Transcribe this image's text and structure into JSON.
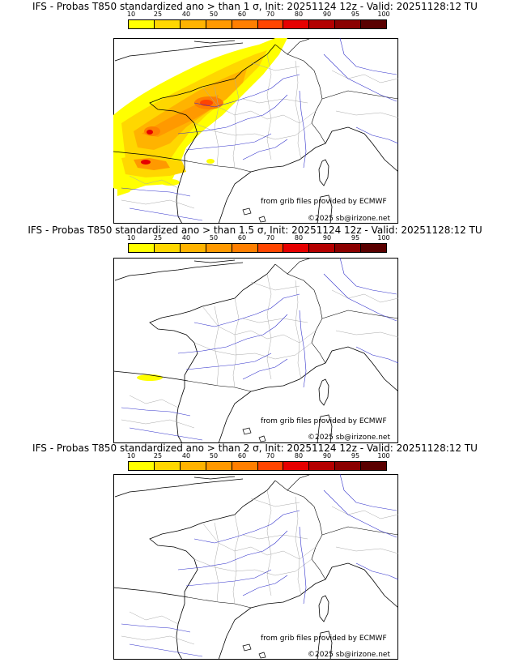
{
  "legend": {
    "ticks": [
      "10",
      "25",
      "40",
      "50",
      "60",
      "70",
      "80",
      "90",
      "95",
      "100"
    ],
    "colors": [
      "#ffff00",
      "#ffd700",
      "#ffb300",
      "#ff9900",
      "#ff7f00",
      "#ff4500",
      "#e60000",
      "#b40000",
      "#8b0000",
      "#5a0000"
    ]
  },
  "panels": [
    {
      "title": "IFS - Probas T850  standardized ano > than 1 σ, Init: 20251124 12z - Valid: 20251128:12 TU",
      "source_text": "from grib files provided by ECMWF",
      "copyright_text": "©2025 sb@irizone.net"
    },
    {
      "title": "IFS - Probas T850  standardized ano > than 1.5 σ, Init: 20251124 12z - Valid: 20251128:12 TU",
      "source_text": "from grib files provided by ECMWF",
      "copyright_text": "©2025 sb@irizone.net"
    },
    {
      "title": "IFS - Probas T850  standardized ano > than 2 σ, Init: 20251124 12z - Valid: 20251128:12 TU",
      "source_text": "from grib files provided by ECMWF",
      "copyright_text": "©2025 sb@irizone.net"
    }
  ]
}
